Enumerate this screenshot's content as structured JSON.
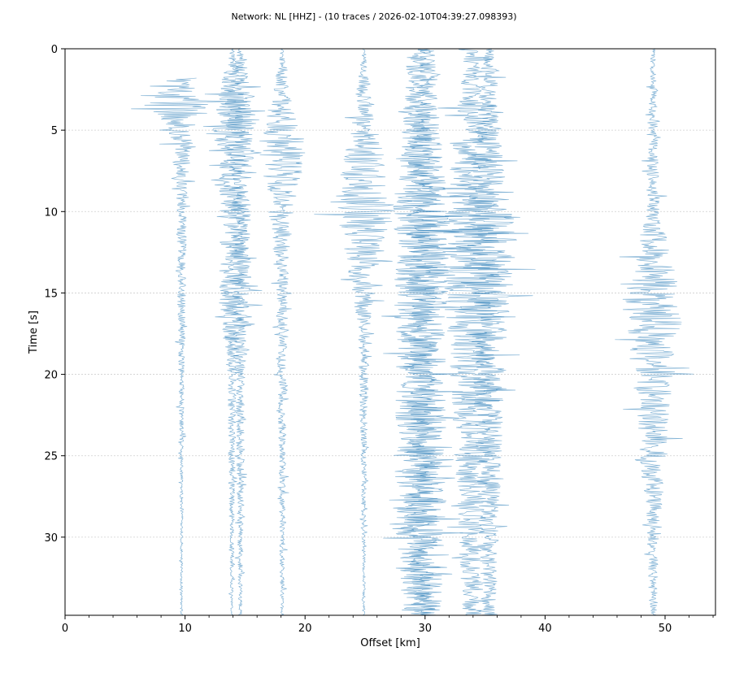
{
  "chart_data": {
    "type": "line",
    "title": "Network: NL [HHZ] - (10 traces / 2026-02-10T04:39:27.098393)",
    "xlabel": "Offset [km]",
    "ylabel": "Time [s]",
    "xlim": [
      0,
      54.2
    ],
    "ylim": [
      34.8,
      0
    ],
    "x_ticks": [
      "0",
      "10",
      "20",
      "30",
      "40",
      "50"
    ],
    "y_ticks": [
      "0",
      "5",
      "10",
      "15",
      "20",
      "25",
      "30"
    ],
    "y_grid": true,
    "line_color": "#1f77b4",
    "series": [
      {
        "offset_km": 9.7,
        "time_window_s": [
          1.8,
          34.8
        ],
        "amplitude_km": [
          {
            "t": 2,
            "a": 1.3
          },
          {
            "t": 3.5,
            "a": 2.8
          },
          {
            "t": 5,
            "a": 1.2
          },
          {
            "t": 8,
            "a": 0.5
          },
          {
            "t": 15,
            "a": 0.35
          },
          {
            "t": 25,
            "a": 0.15
          },
          {
            "t": 34.8,
            "a": 0.1
          }
        ]
      },
      {
        "offset_km": 13.9,
        "time_window_s": [
          0,
          34.8
        ],
        "amplitude_km": [
          {
            "t": 0,
            "a": 0.15
          },
          {
            "t": 3,
            "a": 1.2
          },
          {
            "t": 5,
            "a": 1.6
          },
          {
            "t": 8,
            "a": 1.1
          },
          {
            "t": 16,
            "a": 1.0
          },
          {
            "t": 20,
            "a": 0.4
          },
          {
            "t": 34.8,
            "a": 0.1
          }
        ]
      },
      {
        "offset_km": 14.6,
        "time_window_s": [
          0,
          34.8
        ],
        "amplitude_km": [
          {
            "t": 0,
            "a": 0.15
          },
          {
            "t": 3,
            "a": 1.3
          },
          {
            "t": 5,
            "a": 1.5
          },
          {
            "t": 8,
            "a": 0.9
          },
          {
            "t": 16,
            "a": 0.9
          },
          {
            "t": 20,
            "a": 0.4
          },
          {
            "t": 34.8,
            "a": 0.15
          }
        ]
      },
      {
        "offset_km": 18.1,
        "time_window_s": [
          0,
          34.8
        ],
        "amplitude_km": [
          {
            "t": 0,
            "a": 0.1
          },
          {
            "t": 3,
            "a": 0.9
          },
          {
            "t": 6,
            "a": 2.0
          },
          {
            "t": 9,
            "a": 1.3
          },
          {
            "t": 14,
            "a": 0.5
          },
          {
            "t": 25,
            "a": 0.3
          },
          {
            "t": 34.8,
            "a": 0.15
          }
        ]
      },
      {
        "offset_km": 24.9,
        "time_window_s": [
          0,
          34.8
        ],
        "amplitude_km": [
          {
            "t": 0,
            "a": 0.1
          },
          {
            "t": 4.5,
            "a": 1.1
          },
          {
            "t": 10,
            "a": 2.6
          },
          {
            "t": 13,
            "a": 1.5
          },
          {
            "t": 17,
            "a": 0.5
          },
          {
            "t": 25,
            "a": 0.25
          },
          {
            "t": 34.8,
            "a": 0.1
          }
        ]
      },
      {
        "offset_km": 29.3,
        "time_window_s": [
          0,
          34.8
        ],
        "amplitude_km": [
          {
            "t": 0,
            "a": 0.8
          },
          {
            "t": 5,
            "a": 1.2
          },
          {
            "t": 10,
            "a": 2.0
          },
          {
            "t": 18,
            "a": 1.8
          },
          {
            "t": 30,
            "a": 1.8
          },
          {
            "t": 34.8,
            "a": 1.2
          }
        ]
      },
      {
        "offset_km": 30.1,
        "time_window_s": [
          0,
          34.8
        ],
        "amplitude_km": [
          {
            "t": 0,
            "a": 0.8
          },
          {
            "t": 5,
            "a": 1.2
          },
          {
            "t": 10,
            "a": 2.0
          },
          {
            "t": 18,
            "a": 1.6
          },
          {
            "t": 30,
            "a": 1.7
          },
          {
            "t": 34.8,
            "a": 1.2
          }
        ]
      },
      {
        "offset_km": 33.9,
        "time_window_s": [
          0,
          34.8
        ],
        "amplitude_km": [
          {
            "t": 0,
            "a": 0.6
          },
          {
            "t": 6,
            "a": 1.6
          },
          {
            "t": 12,
            "a": 2.6
          },
          {
            "t": 20,
            "a": 1.8
          },
          {
            "t": 34.8,
            "a": 0.8
          }
        ]
      },
      {
        "offset_km": 35.3,
        "time_window_s": [
          0,
          34.8
        ],
        "amplitude_km": [
          {
            "t": 0,
            "a": 0.5
          },
          {
            "t": 8,
            "a": 1.4
          },
          {
            "t": 12,
            "a": 2.4
          },
          {
            "t": 20,
            "a": 1.3
          },
          {
            "t": 34.8,
            "a": 0.6
          }
        ]
      },
      {
        "offset_km": 49.0,
        "time_window_s": [
          0,
          34.8
        ],
        "amplitude_km": [
          {
            "t": 0,
            "a": 0.2
          },
          {
            "t": 10,
            "a": 0.6
          },
          {
            "t": 15.5,
            "a": 2.6
          },
          {
            "t": 21,
            "a": 1.6
          },
          {
            "t": 30,
            "a": 0.5
          },
          {
            "t": 34.8,
            "a": 0.3
          }
        ]
      }
    ]
  }
}
